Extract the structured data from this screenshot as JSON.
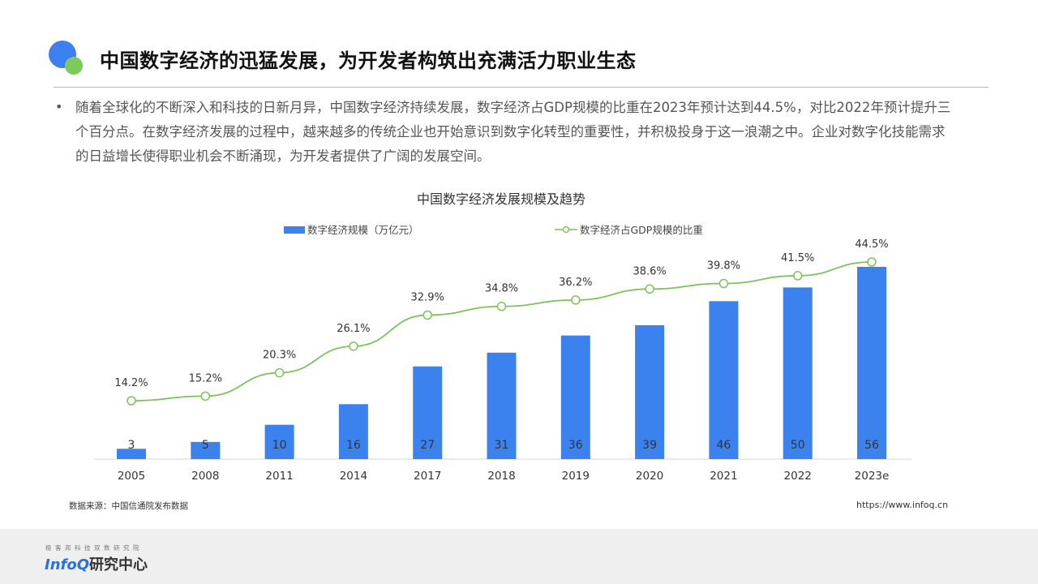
{
  "header": {
    "title": "中国数字经济的迅猛发展，为开发者构筑出充满活力职业生态"
  },
  "content": {
    "bullet": "•",
    "paragraph": "随着全球化的不断深入和科技的日新月异，中国数字经济持续发展，数字经济占GDP规模的比重在2023年预计达到44.5%，对比2022年预计提升三个百分点。在数字经济发展的过程中，越来越多的传统企业也开始意识到数字化转型的重要性，并积极投身于这一浪潮之中。企业对数字化技能需求的日益增长使得职业机会不断涌现，为开发者提供了广阔的发展空间。"
  },
  "chart_data": {
    "type": "bar",
    "title": "中国数字经济发展规模及趋势",
    "categories": [
      "2005",
      "2008",
      "2011",
      "2014",
      "2017",
      "2018",
      "2019",
      "2020",
      "2021",
      "2022",
      "2023e"
    ],
    "series": [
      {
        "name": "数字经济规模（万亿元）",
        "type": "bar",
        "color": "#3c82ee",
        "values": [
          3,
          5,
          10,
          16,
          27,
          31,
          36,
          39,
          46,
          50,
          56
        ]
      },
      {
        "name": "数字经济占GDP规模的比重",
        "type": "line",
        "color": "#7cc35a",
        "values": [
          14.2,
          15.2,
          20.3,
          26.1,
          32.9,
          34.8,
          36.2,
          38.6,
          39.8,
          41.5,
          44.5
        ],
        "labels": [
          "14.2%",
          "15.2%",
          "20.3%",
          "26.1%",
          "32.9%",
          "34.8%",
          "36.2%",
          "38.6%",
          "39.8%",
          "41.5%",
          "44.5%"
        ]
      }
    ],
    "ylim_bar": [
      0,
      57
    ],
    "ylim_line": [
      0,
      45
    ],
    "legend": "top-center",
    "grid": false
  },
  "footer_source": {
    "source": "数据来源：中国信通院发布数据",
    "url": "https://www.infoq.cn"
  },
  "brand": {
    "tagline": "极客邦科技双数研究院",
    "name_part1": "InfoQ",
    "name_part2": "研究中心"
  }
}
